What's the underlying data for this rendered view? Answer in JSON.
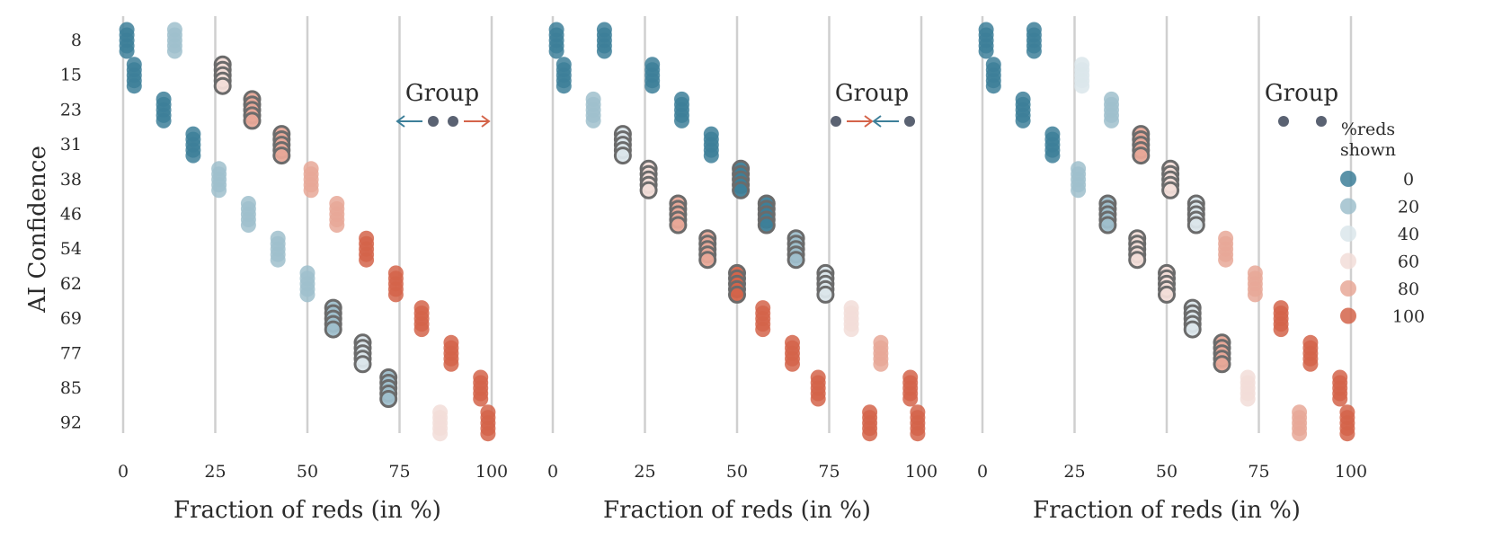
{
  "chart_data": {
    "type": "scatter",
    "ylabel": "AI Confidence",
    "y_categories": [
      "8",
      "15",
      "23",
      "31",
      "38",
      "46",
      "54",
      "62",
      "69",
      "77",
      "85",
      "92"
    ],
    "x_ticks": [
      0,
      25,
      50,
      75,
      100
    ],
    "xlim": [
      0,
      100
    ],
    "grid": "vertical",
    "legend": {
      "title_line1": "%reds",
      "title_line2": "shown",
      "placement": "right",
      "entries": [
        "0",
        "20",
        "40",
        "60",
        "80",
        "100"
      ],
      "colors": [
        "#3d7f99",
        "#9fbfcc",
        "#dbe6eb",
        "#f2ddd8",
        "#e8a898",
        "#d4644a"
      ]
    },
    "highlight_ring_color": "#6b6b6b",
    "panels": [
      {
        "xlabel": "Fraction of reds (in %)",
        "group_label": "Group",
        "group_marker": "arrows-out",
        "points": [
          {
            "row": 0,
            "x": 1,
            "shown": 0,
            "ring": false
          },
          {
            "row": 0,
            "x": 14,
            "shown": 20,
            "ring": false
          },
          {
            "row": 1,
            "x": 3,
            "shown": 0,
            "ring": false
          },
          {
            "row": 1,
            "x": 27,
            "shown": 60,
            "ring": true
          },
          {
            "row": 2,
            "x": 11,
            "shown": 0,
            "ring": false
          },
          {
            "row": 2,
            "x": 35,
            "shown": 80,
            "ring": true
          },
          {
            "row": 3,
            "x": 19,
            "shown": 0,
            "ring": false
          },
          {
            "row": 3,
            "x": 43,
            "shown": 80,
            "ring": true
          },
          {
            "row": 4,
            "x": 26,
            "shown": 20,
            "ring": false
          },
          {
            "row": 4,
            "x": 51,
            "shown": 80,
            "ring": false
          },
          {
            "row": 5,
            "x": 34,
            "shown": 20,
            "ring": false
          },
          {
            "row": 5,
            "x": 58,
            "shown": 80,
            "ring": false
          },
          {
            "row": 6,
            "x": 42,
            "shown": 20,
            "ring": false
          },
          {
            "row": 6,
            "x": 66,
            "shown": 100,
            "ring": false
          },
          {
            "row": 7,
            "x": 50,
            "shown": 20,
            "ring": false
          },
          {
            "row": 7,
            "x": 74,
            "shown": 100,
            "ring": false
          },
          {
            "row": 8,
            "x": 57,
            "shown": 20,
            "ring": true
          },
          {
            "row": 8,
            "x": 81,
            "shown": 100,
            "ring": false
          },
          {
            "row": 9,
            "x": 65,
            "shown": 40,
            "ring": true
          },
          {
            "row": 9,
            "x": 89,
            "shown": 100,
            "ring": false
          },
          {
            "row": 10,
            "x": 72,
            "shown": 20,
            "ring": true
          },
          {
            "row": 10,
            "x": 97,
            "shown": 100,
            "ring": false
          },
          {
            "row": 11,
            "x": 86,
            "shown": 60,
            "ring": false
          },
          {
            "row": 11,
            "x": 99,
            "shown": 100,
            "ring": false
          }
        ]
      },
      {
        "xlabel": "Fraction of reds (in %)",
        "group_label": "Group",
        "group_marker": "arrows-in",
        "points": [
          {
            "row": 0,
            "x": 1,
            "shown": 0,
            "ring": false
          },
          {
            "row": 0,
            "x": 14,
            "shown": 0,
            "ring": false
          },
          {
            "row": 1,
            "x": 3,
            "shown": 0,
            "ring": false
          },
          {
            "row": 1,
            "x": 27,
            "shown": 0,
            "ring": false
          },
          {
            "row": 2,
            "x": 11,
            "shown": 20,
            "ring": false
          },
          {
            "row": 2,
            "x": 35,
            "shown": 0,
            "ring": false
          },
          {
            "row": 3,
            "x": 19,
            "shown": 40,
            "ring": true
          },
          {
            "row": 3,
            "x": 43,
            "shown": 0,
            "ring": false
          },
          {
            "row": 4,
            "x": 26,
            "shown": 60,
            "ring": true
          },
          {
            "row": 4,
            "x": 51,
            "shown": 0,
            "ring": true
          },
          {
            "row": 5,
            "x": 34,
            "shown": 80,
            "ring": true
          },
          {
            "row": 5,
            "x": 58,
            "shown": 0,
            "ring": true
          },
          {
            "row": 6,
            "x": 42,
            "shown": 80,
            "ring": true
          },
          {
            "row": 6,
            "x": 66,
            "shown": 20,
            "ring": true
          },
          {
            "row": 7,
            "x": 50,
            "shown": 100,
            "ring": true
          },
          {
            "row": 7,
            "x": 74,
            "shown": 40,
            "ring": true
          },
          {
            "row": 8,
            "x": 57,
            "shown": 100,
            "ring": false
          },
          {
            "row": 8,
            "x": 81,
            "shown": 60,
            "ring": false
          },
          {
            "row": 9,
            "x": 65,
            "shown": 100,
            "ring": false
          },
          {
            "row": 9,
            "x": 89,
            "shown": 80,
            "ring": false
          },
          {
            "row": 10,
            "x": 72,
            "shown": 100,
            "ring": false
          },
          {
            "row": 10,
            "x": 97,
            "shown": 100,
            "ring": false
          },
          {
            "row": 11,
            "x": 86,
            "shown": 100,
            "ring": false
          },
          {
            "row": 11,
            "x": 99,
            "shown": 100,
            "ring": false
          }
        ]
      },
      {
        "xlabel": "Fraction of reds (in %)",
        "group_label": "Group",
        "group_marker": "dots",
        "points": [
          {
            "row": 0,
            "x": 1,
            "shown": 0,
            "ring": false
          },
          {
            "row": 0,
            "x": 14,
            "shown": 0,
            "ring": false
          },
          {
            "row": 1,
            "x": 3,
            "shown": 0,
            "ring": false
          },
          {
            "row": 1,
            "x": 27,
            "shown": 40,
            "ring": false
          },
          {
            "row": 2,
            "x": 11,
            "shown": 0,
            "ring": false
          },
          {
            "row": 2,
            "x": 35,
            "shown": 20,
            "ring": false
          },
          {
            "row": 3,
            "x": 19,
            "shown": 0,
            "ring": false
          },
          {
            "row": 3,
            "x": 43,
            "shown": 80,
            "ring": true
          },
          {
            "row": 4,
            "x": 26,
            "shown": 20,
            "ring": false
          },
          {
            "row": 4,
            "x": 51,
            "shown": 60,
            "ring": true
          },
          {
            "row": 5,
            "x": 34,
            "shown": 20,
            "ring": true
          },
          {
            "row": 5,
            "x": 58,
            "shown": 40,
            "ring": true
          },
          {
            "row": 6,
            "x": 42,
            "shown": 60,
            "ring": true
          },
          {
            "row": 6,
            "x": 66,
            "shown": 80,
            "ring": false
          },
          {
            "row": 7,
            "x": 50,
            "shown": 60,
            "ring": true
          },
          {
            "row": 7,
            "x": 74,
            "shown": 80,
            "ring": false
          },
          {
            "row": 8,
            "x": 57,
            "shown": 40,
            "ring": true
          },
          {
            "row": 8,
            "x": 81,
            "shown": 100,
            "ring": false
          },
          {
            "row": 9,
            "x": 65,
            "shown": 80,
            "ring": true
          },
          {
            "row": 9,
            "x": 89,
            "shown": 100,
            "ring": false
          },
          {
            "row": 10,
            "x": 72,
            "shown": 60,
            "ring": false
          },
          {
            "row": 10,
            "x": 97,
            "shown": 100,
            "ring": false
          },
          {
            "row": 11,
            "x": 86,
            "shown": 80,
            "ring": false
          },
          {
            "row": 11,
            "x": 99,
            "shown": 100,
            "ring": false
          }
        ]
      }
    ]
  }
}
